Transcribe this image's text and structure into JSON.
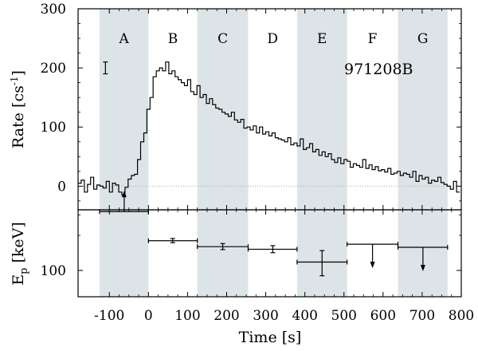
{
  "chart_data": {
    "type": "line",
    "label": "971208B",
    "x_axis": {
      "label": "Time [s]",
      "range": [
        -180,
        800
      ],
      "ticks": [
        -100,
        0,
        100,
        200,
        300,
        400,
        500,
        600,
        700,
        800
      ],
      "tick_labels": [
        "-100",
        "0",
        "100",
        "200",
        "300",
        "400",
        "500",
        "600",
        "700",
        "800"
      ]
    },
    "shaded_colors": {
      "band": "#dde4e7",
      "line": "#000000",
      "zero_line": "#aaaaaa"
    },
    "segments": [
      {
        "label": "A",
        "x": [
          -125,
          0
        ],
        "shaded": true
      },
      {
        "label": "B",
        "x": [
          0,
          125
        ],
        "shaded": false
      },
      {
        "label": "C",
        "x": [
          125,
          255
        ],
        "shaded": true
      },
      {
        "label": "D",
        "x": [
          255,
          380
        ],
        "shaded": false
      },
      {
        "label": "E",
        "x": [
          380,
          508
        ],
        "shaded": true
      },
      {
        "label": "F",
        "x": [
          508,
          638
        ],
        "shaded": false
      },
      {
        "label": "G",
        "x": [
          638,
          765
        ],
        "shaded": true
      }
    ],
    "top_panel": {
      "y_label": "Rate [cs",
      "y_label_sup": "-1",
      "y_label_end": "]",
      "y_range": [
        -40,
        300
      ],
      "y_ticks": [
        0,
        100,
        200,
        300
      ],
      "y_tick_labels": [
        "0",
        "100",
        "200",
        "300"
      ],
      "zero_line": true,
      "error_bar": {
        "x": -110,
        "y": 200,
        "err": 10
      },
      "bin_width": 8,
      "bin_start": -180,
      "rate": [
        5,
        10,
        -10,
        3,
        15,
        -5,
        2,
        0,
        -3,
        8,
        -10,
        5,
        2,
        -10,
        -15,
        -2,
        12,
        18,
        20,
        45,
        75,
        90,
        130,
        150,
        185,
        195,
        200,
        195,
        210,
        190,
        195,
        185,
        180,
        175,
        170,
        180,
        160,
        155,
        170,
        150,
        155,
        140,
        148,
        138,
        132,
        130,
        125,
        122,
        118,
        125,
        112,
        108,
        113,
        98,
        100,
        95,
        102,
        90,
        100,
        88,
        92,
        85,
        90,
        82,
        80,
        78,
        75,
        82,
        70,
        73,
        68,
        80,
        62,
        65,
        72,
        58,
        62,
        52,
        58,
        50,
        55,
        45,
        40,
        48,
        38,
        45,
        42,
        32,
        38,
        35,
        32,
        45,
        30,
        36,
        28,
        33,
        26,
        28,
        24,
        30,
        20,
        22,
        25,
        18,
        22,
        20,
        15,
        25,
        8,
        18,
        12,
        15,
        5,
        10,
        8,
        15,
        6,
        3,
        0,
        -5,
        8,
        -10
      ]
    },
    "bottom_panel": {
      "y_label": "E",
      "y_label_sub": "p",
      "y_label_end": " [keV]",
      "y_scale": "log",
      "y_ticks": [
        100
      ],
      "y_tick_labels": [
        "100"
      ],
      "points": [
        {
          "segment": "A",
          "x": -62,
          "x_range": [
            -125,
            0
          ],
          "y": 320,
          "type": "lower_limit"
        },
        {
          "segment": "B",
          "x": 62,
          "x_range": [
            0,
            125
          ],
          "y": 180,
          "y_err": [
            173,
            188
          ],
          "type": "point"
        },
        {
          "segment": "C",
          "x": 190,
          "x_range": [
            125,
            255
          ],
          "y": 160,
          "y_err": [
            151,
            170
          ],
          "type": "point"
        },
        {
          "segment": "D",
          "x": 318,
          "x_range": [
            255,
            380
          ],
          "y": 152,
          "y_err": [
            142,
            163
          ],
          "type": "point"
        },
        {
          "segment": "E",
          "x": 444,
          "x_range": [
            380,
            508
          ],
          "y": 118,
          "y_err": [
            90,
            148
          ],
          "type": "point"
        },
        {
          "segment": "F",
          "x": 573,
          "x_range": [
            508,
            638
          ],
          "y": 168,
          "type": "upper_limit"
        },
        {
          "segment": "G",
          "x": 702,
          "x_range": [
            638,
            765
          ],
          "y": 158,
          "type": "upper_limit"
        }
      ]
    }
  }
}
